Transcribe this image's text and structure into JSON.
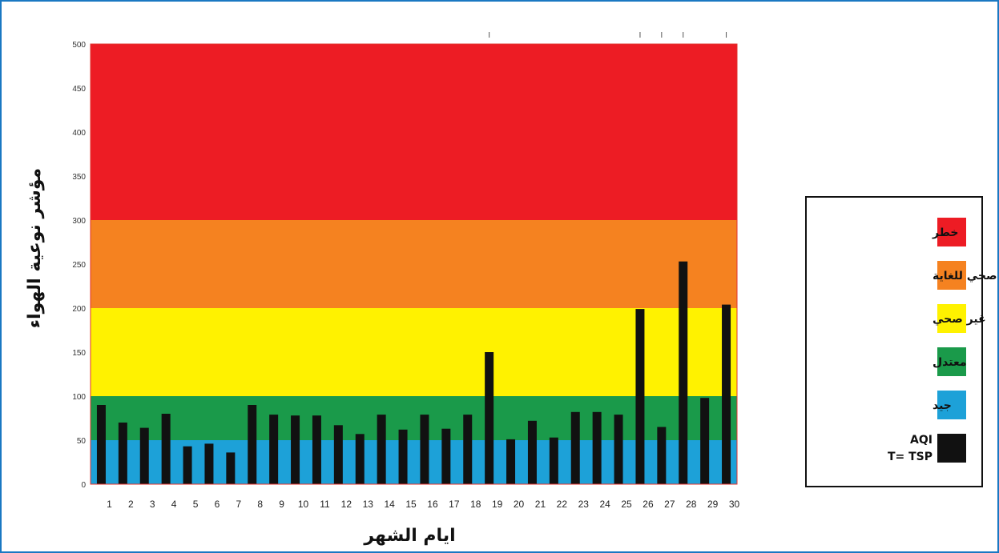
{
  "chart_data": {
    "type": "bar",
    "xlabel": "ايام الشهر",
    "ylabel": "مؤشر نوعية الهواء",
    "ylim": [
      0,
      500
    ],
    "yticks": [
      "0",
      "50",
      "100",
      "150",
      "200",
      "250",
      "300",
      "350",
      "400",
      "450",
      "500"
    ],
    "categories": [
      "1",
      "2",
      "3",
      "4",
      "5",
      "6",
      "7",
      "8",
      "9",
      "10",
      "11",
      "12",
      "13",
      "14",
      "15",
      "16",
      "17",
      "18",
      "19",
      "20",
      "21",
      "22",
      "23",
      "24",
      "25",
      "26",
      "27",
      "28",
      "29",
      "30"
    ],
    "series": [
      {
        "values": [
          90,
          70,
          64,
          80,
          43,
          46,
          36,
          90,
          79,
          78,
          78,
          67,
          57,
          79,
          62,
          79,
          63,
          79,
          150,
          51,
          72,
          53,
          82,
          82,
          79,
          199,
          65,
          253,
          98,
          204
        ],
        "color": "#111111"
      }
    ],
    "top_tick_days": [
      "19",
      "26",
      "27",
      "28",
      "30"
    ],
    "bands": [
      {
        "from": 0,
        "to": 50,
        "color": "#1da1d8",
        "label": "جيد"
      },
      {
        "from": 50,
        "to": 100,
        "color": "#1a9a4a",
        "label": "معتدل"
      },
      {
        "from": 100,
        "to": 200,
        "color": "#fff200",
        "label": "غير صحي"
      },
      {
        "from": 200,
        "to": 300,
        "color": "#f58220",
        "label": "غير صحي للغاية"
      },
      {
        "from": 300,
        "to": 500,
        "color": "#ed1c24",
        "label": "خطر"
      }
    ],
    "legend": {
      "position": "right",
      "items": [
        {
          "label": "خطر",
          "color": "#ed1c24"
        },
        {
          "label": "غير صحي للغاية",
          "color": "#f58220"
        },
        {
          "label": "غير صحي",
          "color": "#fff200"
        },
        {
          "label": "معتدل",
          "color": "#1a9a4a"
        },
        {
          "label": "جيد",
          "color": "#1da1d8"
        },
        {
          "label": "AQI",
          "label2": "T= TSP",
          "color": "#111111"
        }
      ]
    }
  }
}
